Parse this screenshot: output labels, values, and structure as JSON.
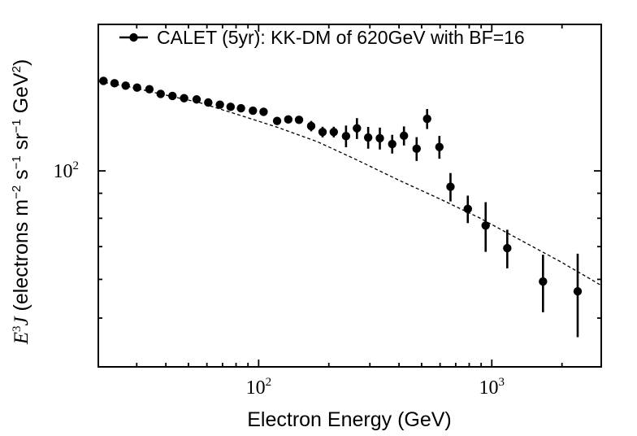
{
  "figure": {
    "background": "#ffffff",
    "axis_color": "#000000",
    "marker_color": "#000000",
    "model_line_color": "#000000"
  },
  "chart_data": {
    "type": "scatter",
    "title": "",
    "xlabel": "Electron Energy (GeV)",
    "ylabel": "E3J (electrons m-2 s-1 sr-1 GeV2)",
    "ylabel_parts": [
      {
        "t": "E",
        "style": "italic-serif"
      },
      {
        "t": "3",
        "style": "sup-serif"
      },
      {
        "t": "J",
        "style": "italic-serif"
      },
      {
        "t": " (electrons m",
        "style": "sans"
      },
      {
        "t": "−2",
        "style": "sup-sans"
      },
      {
        "t": " s",
        "style": "sans"
      },
      {
        "t": "−1",
        "style": "sup-sans"
      },
      {
        "t": " sr",
        "style": "sans"
      },
      {
        "t": "−1",
        "style": "sup-sans"
      },
      {
        "t": " GeV",
        "style": "sans"
      },
      {
        "t": "2",
        "style": "sup-sans"
      },
      {
        "t": ")",
        "style": "sans"
      }
    ],
    "x_scale": "log",
    "y_scale": "log",
    "xlim": [
      20.53,
      2947
    ],
    "ylim": [
      39.74,
      199.33
    ],
    "grid": false,
    "legend_position": "upper-left-inside",
    "x_major_ticks": [
      {
        "value": 100,
        "base": "10",
        "exp": "2"
      },
      {
        "value": 1000,
        "base": "10",
        "exp": "3"
      }
    ],
    "x_minor_ticks": [
      30,
      40,
      50,
      60,
      70,
      80,
      90,
      200,
      300,
      400,
      500,
      600,
      700,
      800,
      900,
      2000
    ],
    "y_major_ticks": [
      {
        "value": 100,
        "base": "10",
        "exp": "2"
      }
    ],
    "y_minor_ticks": [
      50,
      60,
      70,
      80,
      90
    ],
    "legend": {
      "label": "CALET (5yr): KK-DM of 620GeV with BF=16",
      "marker": "errorbar-filled-circle"
    },
    "series": [
      {
        "name": "CALET (5yr): KK-DM of 620GeV with BF=16",
        "type": "errorbar-scatter",
        "color": "#000000",
        "points": [
          {
            "E": 21.6,
            "F": 152.8,
            "err": 1.5
          },
          {
            "E": 24.1,
            "F": 151.1,
            "err": 1.5
          },
          {
            "E": 26.9,
            "F": 149.4,
            "err": 1.5
          },
          {
            "E": 30.1,
            "F": 148.0,
            "err": 1.5
          },
          {
            "E": 34.0,
            "F": 146.9,
            "err": 1.5
          },
          {
            "E": 38.0,
            "F": 143.7,
            "err": 1.5
          },
          {
            "E": 42.7,
            "F": 142.3,
            "err": 1.5
          },
          {
            "E": 47.9,
            "F": 140.8,
            "err": 1.5
          },
          {
            "E": 54.2,
            "F": 140.0,
            "err": 1.5
          },
          {
            "E": 60.8,
            "F": 138.0,
            "err": 1.5
          },
          {
            "E": 68.2,
            "F": 136.6,
            "err": 1.5
          },
          {
            "E": 75.8,
            "F": 135.2,
            "err": 1.5
          },
          {
            "E": 84.0,
            "F": 134.3,
            "err": 1.5
          },
          {
            "E": 94.5,
            "F": 132.8,
            "err": 1.5
          },
          {
            "E": 105,
            "F": 132.1,
            "err": 1.5
          },
          {
            "E": 120,
            "F": 126.5,
            "err": 2
          },
          {
            "E": 134,
            "F": 127.4,
            "err": 2
          },
          {
            "E": 149,
            "F": 127.2,
            "err": 2
          },
          {
            "E": 168,
            "F": 123.5,
            "err": 3
          },
          {
            "E": 188,
            "F": 120.1,
            "err": 3
          },
          {
            "E": 210,
            "F": 120.1,
            "err": 3
          },
          {
            "E": 237,
            "F": 117.8,
            "err": 6
          },
          {
            "E": 264,
            "F": 122.2,
            "err": 6
          },
          {
            "E": 295,
            "F": 117.0,
            "err": 6
          },
          {
            "E": 331,
            "F": 116.6,
            "err": 6
          },
          {
            "E": 374,
            "F": 113.5,
            "err": 5
          },
          {
            "E": 420,
            "F": 118.0,
            "err": 5.3
          },
          {
            "E": 476,
            "F": 111.0,
            "err": 6.2
          },
          {
            "E": 528,
            "F": 127.8,
            "err": 6
          },
          {
            "E": 596,
            "F": 111.9,
            "err": 6
          },
          {
            "E": 665,
            "F": 92.8,
            "err": 6.2
          },
          {
            "E": 789,
            "F": 83.6,
            "err": 5.4
          },
          {
            "E": 941,
            "F": 77.3,
            "err": 9
          },
          {
            "E": 1165,
            "F": 69.5,
            "err": 6.3
          },
          {
            "E": 1658,
            "F": 59.4,
            "err": 8
          },
          {
            "E": 2335,
            "F": 56.7,
            "err": 11
          }
        ]
      },
      {
        "name": "background model (dashed)",
        "type": "dashed-line",
        "color": "#000000",
        "points": [
          {
            "E": 20.7,
            "F": 152.4
          },
          {
            "E": 28.1,
            "F": 148.4
          },
          {
            "E": 38.7,
            "F": 143.4
          },
          {
            "E": 55.6,
            "F": 138.0
          },
          {
            "E": 79.7,
            "F": 130.8
          },
          {
            "E": 119,
            "F": 123.0
          },
          {
            "E": 178,
            "F": 114.8
          },
          {
            "E": 266,
            "F": 105.1
          },
          {
            "E": 396,
            "F": 95.9
          },
          {
            "E": 594,
            "F": 87.8
          },
          {
            "E": 888,
            "F": 80.1
          },
          {
            "E": 1326,
            "F": 72.2
          },
          {
            "E": 1983,
            "F": 65.1
          },
          {
            "E": 2950,
            "F": 58.3
          }
        ]
      }
    ]
  }
}
